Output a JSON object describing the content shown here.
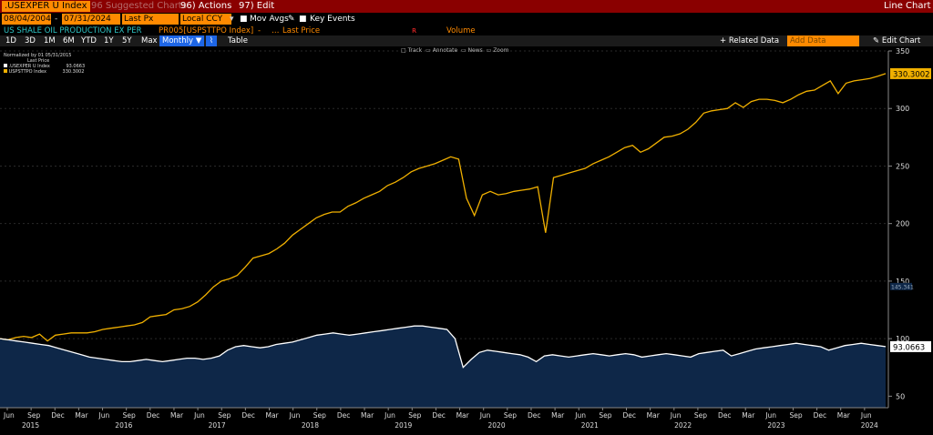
{
  "toolbar": {
    "security": ".USEXPER U Index",
    "suggested": "96 Suggested Charts",
    "actions": "96) Actions",
    "edit": "97) Edit",
    "chart_kind": "Line Chart"
  },
  "params": {
    "start_date": "08/04/2004",
    "end_date": "07/31/2024",
    "price_type": "Last Px",
    "currency": "Local CCY",
    "mov_avgs": "Mov Avgs",
    "key_events": "Key Events"
  },
  "series_bar": {
    "series1_name": "US SHALE OIL PRODUCTION EX PER",
    "series2_name": "PR005[USPSTTPO Index]",
    "series2_field": "Last Price",
    "volume": "Volume"
  },
  "periods": [
    "1D",
    "3D",
    "1M",
    "6M",
    "YTD",
    "1Y",
    "5Y",
    "Max"
  ],
  "period_selected": "Monthly",
  "table_label": "Table",
  "related_data": "+ Related Data",
  "add_data_placeholder": "Add Data",
  "edit_chart": "Edit Chart",
  "chart_tools": [
    "Track",
    "Annotate",
    "News",
    "Zoom"
  ],
  "legend": {
    "normalized_note": "Normalized by 01 05/31/2015",
    "last_price": "Last Price",
    "items": [
      {
        "name": ".USEXPER U Index",
        "value": "93.0663",
        "color": "#ffffff"
      },
      {
        "name": "USPSTTPO Index",
        "value": "330.3002",
        "color": "#f0b000"
      }
    ]
  },
  "colors": {
    "accent": "#ff8a00",
    "toolbar_bg": "#8a0000",
    "series1": "#ffffff",
    "series2": "#f0b000",
    "area_fill": "#0e2748"
  },
  "chart_data": {
    "type": "line",
    "ylim": [
      40,
      350
    ],
    "yticks": [
      50,
      100,
      150,
      200,
      250,
      300,
      350
    ],
    "x_month_labels": [
      "Jun",
      "Sep",
      "Dec",
      "Mar",
      "Jun",
      "Sep",
      "Dec",
      "Mar",
      "Jun",
      "Sep",
      "Dec",
      "Mar",
      "Jun",
      "Sep",
      "Dec",
      "Mar",
      "Jun",
      "Sep",
      "Dec",
      "Mar",
      "Jun",
      "Sep",
      "Dec",
      "Mar",
      "Jun",
      "Sep",
      "Dec",
      "Mar",
      "Jun",
      "Sep",
      "Dec",
      "Mar",
      "Jun",
      "Sep",
      "Dec",
      "Mar",
      "Jun"
    ],
    "x_year_labels": [
      "2015",
      "2016",
      "2017",
      "2018",
      "2019",
      "2020",
      "2021",
      "2022",
      "2023",
      "2024"
    ],
    "last_values": [
      "330.3002",
      "93.0663"
    ],
    "mid_marker": "145.341",
    "series": [
      {
        "name": "USPSTTPO Index",
        "values": [
          100,
          99,
          101,
          102,
          101,
          104,
          98,
          103,
          104,
          105,
          105,
          105,
          106,
          108,
          109,
          110,
          111,
          112,
          114,
          119,
          120,
          121,
          125,
          126,
          128,
          132,
          138,
          145,
          150,
          152,
          155,
          162,
          170,
          172,
          174,
          178,
          183,
          190,
          195,
          200,
          205,
          208,
          210,
          210,
          215,
          218,
          222,
          225,
          228,
          233,
          236,
          240,
          245,
          248,
          250,
          252,
          255,
          258,
          256,
          222,
          207,
          225,
          228,
          225,
          226,
          228,
          229,
          230,
          232,
          192,
          240,
          242,
          244,
          246,
          248,
          252,
          255,
          258,
          262,
          266,
          268,
          262,
          265,
          270,
          275,
          276,
          278,
          282,
          288,
          296,
          298,
          299,
          300,
          305,
          301,
          306,
          308,
          308,
          307,
          305,
          308,
          312,
          315,
          316,
          320,
          324,
          313,
          322,
          324,
          325,
          326,
          328,
          330.3
        ]
      },
      {
        "name": ".USEXPER U Index",
        "values": [
          100,
          99,
          98,
          97,
          96,
          95,
          94,
          92,
          90,
          88,
          86,
          84,
          83,
          82,
          81,
          80,
          80,
          81,
          82,
          81,
          80,
          81,
          82,
          83,
          83,
          82,
          83,
          85,
          90,
          93,
          94,
          93,
          92,
          93,
          95,
          96,
          97,
          99,
          101,
          103,
          104,
          105,
          104,
          103,
          104,
          105,
          106,
          107,
          108,
          109,
          110,
          111,
          111,
          110,
          109,
          108,
          100,
          75,
          82,
          88,
          90,
          89,
          88,
          87,
          86,
          84,
          80,
          85,
          86,
          85,
          84,
          85,
          86,
          87,
          86,
          85,
          86,
          87,
          86,
          84,
          85,
          86,
          87,
          86,
          85,
          84,
          87,
          88,
          89,
          90,
          85,
          87,
          89,
          91,
          92,
          93,
          94,
          95,
          96,
          95,
          94,
          93,
          90,
          92,
          94,
          95,
          96,
          95,
          94,
          93.07
        ]
      }
    ]
  }
}
